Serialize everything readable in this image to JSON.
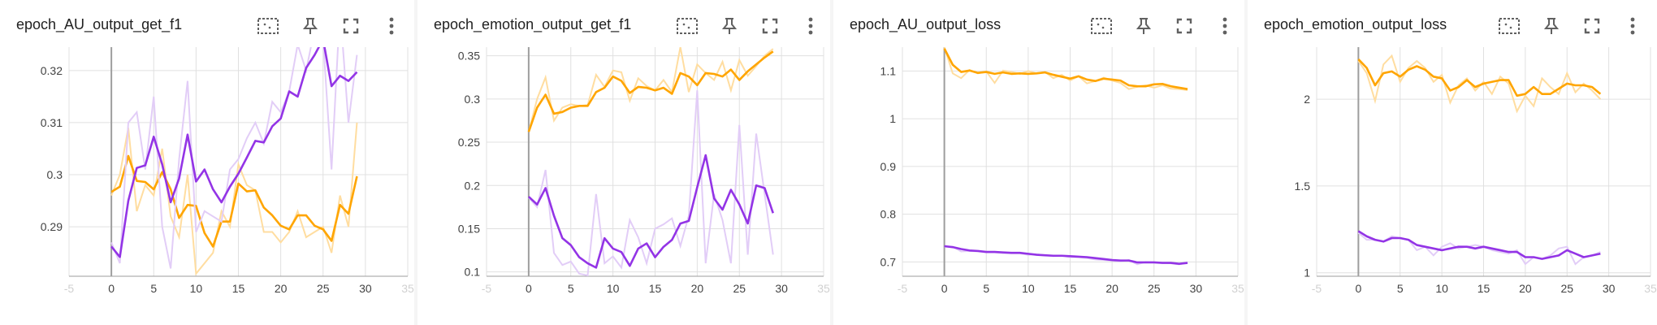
{
  "colors": {
    "orange": "#ffa500",
    "orange_raw": "#ffdda0",
    "purple": "#9334e6",
    "purple_raw": "#e2cdf7",
    "grid": "#e0e0e0",
    "axis": "#9e9e9e"
  },
  "icons": [
    "fit-domain-icon",
    "pin-icon",
    "fullscreen-icon",
    "more-vert-icon"
  ],
  "chart_data": [
    {
      "type": "line",
      "title": "epoch_AU_output_get_f1",
      "xlim": [
        -5,
        35
      ],
      "ylim": [
        0.2805,
        0.3245
      ],
      "xticks": [
        {
          "v": -5,
          "l": "-5"
        },
        {
          "v": 0,
          "l": "0"
        },
        {
          "v": 5,
          "l": "5"
        },
        {
          "v": 10,
          "l": "10"
        },
        {
          "v": 15,
          "l": "15"
        },
        {
          "v": 20,
          "l": "20"
        },
        {
          "v": 25,
          "l": "25"
        },
        {
          "v": 30,
          "l": "30"
        },
        {
          "v": 35,
          "l": "35"
        }
      ],
      "yticks": [
        {
          "v": 0.29,
          "l": "0.29"
        },
        {
          "v": 0.3,
          "l": "0.3"
        },
        {
          "v": 0.31,
          "l": "0.31"
        },
        {
          "v": 0.32,
          "l": "0.32"
        }
      ],
      "series": [
        {
          "color": "orange",
          "raw": [
            0.296,
            0.3,
            0.309,
            0.293,
            0.298,
            0.296,
            0.305,
            0.292,
            0.288,
            0.3,
            0.281,
            0.283,
            0.285,
            0.293,
            0.29,
            0.302,
            0.298,
            0.297,
            0.289,
            0.289,
            0.287,
            0.289,
            0.293,
            0.288,
            0.289,
            0.29,
            0.285,
            0.296,
            0.29,
            0.31
          ],
          "smoothed": [
            0.2967,
            0.2977,
            0.3036,
            0.2988,
            0.2986,
            0.2972,
            0.3005,
            0.2972,
            0.2917,
            0.2942,
            0.294,
            0.2888,
            0.2862,
            0.291,
            0.291,
            0.2983,
            0.2968,
            0.297,
            0.2937,
            0.2922,
            0.2902,
            0.2895,
            0.2922,
            0.2922,
            0.2902,
            0.2895,
            0.2873,
            0.2942,
            0.2925,
            0.2997
          ]
        },
        {
          "color": "purple",
          "raw": [
            0.287,
            0.283,
            0.31,
            0.312,
            0.301,
            0.315,
            0.29,
            0.282,
            0.303,
            0.318,
            0.289,
            0.293,
            0.292,
            0.291,
            0.301,
            0.303,
            0.307,
            0.31,
            0.306,
            0.314,
            0.312,
            0.316,
            0.325,
            0.32,
            0.328,
            0.326,
            0.301,
            0.332,
            0.31,
            0.323
          ],
          "smoothed": [
            0.2862,
            0.2842,
            0.295,
            0.3013,
            0.3018,
            0.3073,
            0.302,
            0.2947,
            0.2993,
            0.3077,
            0.2987,
            0.301,
            0.2972,
            0.2947,
            0.2977,
            0.3002,
            0.3033,
            0.3065,
            0.3062,
            0.3093,
            0.3108,
            0.316,
            0.315,
            0.3205,
            0.323,
            0.326,
            0.317,
            0.319,
            0.318,
            0.3197
          ]
        }
      ]
    },
    {
      "type": "line",
      "title": "epoch_emotion_output_get_f1",
      "xlim": [
        -5,
        35
      ],
      "ylim": [
        0.095,
        0.36
      ],
      "xticks": [
        {
          "v": -5,
          "l": "-5"
        },
        {
          "v": 0,
          "l": "0"
        },
        {
          "v": 5,
          "l": "5"
        },
        {
          "v": 10,
          "l": "10"
        },
        {
          "v": 15,
          "l": "15"
        },
        {
          "v": 20,
          "l": "20"
        },
        {
          "v": 25,
          "l": "25"
        },
        {
          "v": 30,
          "l": "30"
        },
        {
          "v": 35,
          "l": "35"
        }
      ],
      "yticks": [
        {
          "v": 0.1,
          "l": "0.1"
        },
        {
          "v": 0.15,
          "l": "0.15"
        },
        {
          "v": 0.2,
          "l": "0.2"
        },
        {
          "v": 0.25,
          "l": "0.25"
        },
        {
          "v": 0.3,
          "l": "0.3"
        },
        {
          "v": 0.35,
          "l": "0.35"
        }
      ],
      "series": [
        {
          "color": "orange",
          "raw": [
            0.262,
            0.3,
            0.325,
            0.275,
            0.29,
            0.294,
            0.292,
            0.293,
            0.328,
            0.314,
            0.333,
            0.331,
            0.298,
            0.324,
            0.315,
            0.31,
            0.322,
            0.308,
            0.36,
            0.308,
            0.34,
            0.33,
            0.322,
            0.343,
            0.31,
            0.345,
            0.327,
            0.338,
            0.35,
            0.358
          ],
          "smoothed": [
            0.262,
            0.29,
            0.305,
            0.283,
            0.285,
            0.29,
            0.292,
            0.292,
            0.308,
            0.313,
            0.326,
            0.321,
            0.307,
            0.314,
            0.313,
            0.31,
            0.313,
            0.306,
            0.33,
            0.326,
            0.316,
            0.33,
            0.329,
            0.326,
            0.334,
            0.322,
            0.332,
            0.34,
            0.348,
            0.355
          ]
        },
        {
          "color": "purple",
          "raw": [
            0.186,
            0.175,
            0.218,
            0.122,
            0.108,
            0.112,
            0.098,
            0.096,
            0.19,
            0.11,
            0.118,
            0.105,
            0.16,
            0.14,
            0.11,
            0.15,
            0.155,
            0.162,
            0.13,
            0.165,
            0.31,
            0.11,
            0.19,
            0.16,
            0.11,
            0.27,
            0.12,
            0.26,
            0.19,
            0.12
          ],
          "smoothed": [
            0.187,
            0.178,
            0.197,
            0.165,
            0.139,
            0.131,
            0.117,
            0.11,
            0.105,
            0.139,
            0.127,
            0.123,
            0.107,
            0.127,
            0.133,
            0.117,
            0.129,
            0.137,
            0.156,
            0.159,
            0.198,
            0.235,
            0.185,
            0.172,
            0.195,
            0.178,
            0.156,
            0.2,
            0.197,
            0.168
          ]
        }
      ]
    },
    {
      "type": "line",
      "title": "epoch_AU_output_loss",
      "xlim": [
        -5,
        35
      ],
      "ylim": [
        0.67,
        1.15
      ],
      "xticks": [
        {
          "v": -5,
          "l": "-5"
        },
        {
          "v": 0,
          "l": "0"
        },
        {
          "v": 5,
          "l": "5"
        },
        {
          "v": 10,
          "l": "10"
        },
        {
          "v": 15,
          "l": "15"
        },
        {
          "v": 20,
          "l": "20"
        },
        {
          "v": 25,
          "l": "25"
        },
        {
          "v": 30,
          "l": "30"
        },
        {
          "v": 35,
          "l": "35"
        }
      ],
      "yticks": [
        {
          "v": 0.7,
          "l": "0.7"
        },
        {
          "v": 0.8,
          "l": "0.8"
        },
        {
          "v": 0.9,
          "l": "0.9"
        },
        {
          "v": 1.0,
          "l": "1"
        },
        {
          "v": 1.1,
          "l": "1.1"
        }
      ],
      "series": [
        {
          "color": "orange",
          "raw": [
            1.15,
            1.095,
            1.085,
            1.102,
            1.095,
            1.099,
            1.075,
            1.101,
            1.098,
            1.094,
            1.1,
            1.095,
            1.098,
            1.085,
            1.092,
            1.08,
            1.089,
            1.074,
            1.079,
            1.086,
            1.08,
            1.075,
            1.062,
            1.067,
            1.07,
            1.065,
            1.07,
            1.063,
            1.062,
            1.06
          ],
          "smoothed": [
            1.147,
            1.113,
            1.098,
            1.101,
            1.096,
            1.098,
            1.094,
            1.097,
            1.094,
            1.095,
            1.094,
            1.095,
            1.097,
            1.092,
            1.088,
            1.084,
            1.089,
            1.082,
            1.079,
            1.084,
            1.082,
            1.08,
            1.07,
            1.068,
            1.068,
            1.072,
            1.073,
            1.068,
            1.065,
            1.062
          ]
        },
        {
          "color": "purple",
          "raw": [
            0.732,
            0.732,
            0.722,
            0.723,
            0.722,
            0.72,
            0.72,
            0.718,
            0.718,
            0.718,
            0.715,
            0.716,
            0.714,
            0.712,
            0.713,
            0.71,
            0.71,
            0.708,
            0.705,
            0.704,
            0.703,
            0.701,
            0.704,
            0.695,
            0.7,
            0.699,
            0.699,
            0.697,
            0.695,
            0.699
          ],
          "smoothed": [
            0.733,
            0.731,
            0.727,
            0.724,
            0.723,
            0.721,
            0.721,
            0.72,
            0.719,
            0.719,
            0.717,
            0.715,
            0.714,
            0.713,
            0.713,
            0.712,
            0.711,
            0.71,
            0.708,
            0.706,
            0.704,
            0.703,
            0.703,
            0.699,
            0.699,
            0.699,
            0.698,
            0.698,
            0.696,
            0.698
          ]
        }
      ]
    },
    {
      "type": "line",
      "title": "epoch_emotion_output_loss",
      "xlim": [
        -5,
        35
      ],
      "ylim": [
        0.98,
        2.3
      ],
      "xticks": [
        {
          "v": -5,
          "l": "-5"
        },
        {
          "v": 0,
          "l": "0"
        },
        {
          "v": 5,
          "l": "5"
        },
        {
          "v": 10,
          "l": "10"
        },
        {
          "v": 15,
          "l": "15"
        },
        {
          "v": 20,
          "l": "20"
        },
        {
          "v": 25,
          "l": "25"
        },
        {
          "v": 30,
          "l": "30"
        },
        {
          "v": 35,
          "l": "35"
        }
      ],
      "yticks": [
        {
          "v": 1.0,
          "l": "1"
        },
        {
          "v": 1.5,
          "l": "1.5"
        },
        {
          "v": 2.0,
          "l": "2"
        }
      ],
      "series": [
        {
          "color": "orange",
          "raw": [
            2.22,
            2.15,
            1.99,
            2.2,
            2.25,
            2.1,
            2.18,
            2.22,
            2.18,
            2.1,
            2.14,
            1.98,
            2.08,
            2.12,
            2.05,
            2.1,
            2.03,
            2.13,
            2.09,
            1.93,
            2.02,
            1.96,
            2.12,
            2.07,
            2.03,
            2.15,
            2.04,
            2.09,
            2.05,
            2.0
          ],
          "smoothed": [
            2.23,
            2.18,
            2.08,
            2.15,
            2.16,
            2.13,
            2.17,
            2.19,
            2.17,
            2.13,
            2.12,
            2.05,
            2.07,
            2.11,
            2.07,
            2.09,
            2.1,
            2.11,
            2.11,
            2.02,
            2.03,
            2.07,
            2.03,
            2.03,
            2.06,
            2.09,
            2.08,
            2.08,
            2.07,
            2.03
          ]
        },
        {
          "color": "purple",
          "raw": [
            1.23,
            1.19,
            1.19,
            1.18,
            1.21,
            1.2,
            1.19,
            1.13,
            1.15,
            1.1,
            1.15,
            1.17,
            1.14,
            1.15,
            1.16,
            1.15,
            1.13,
            1.12,
            1.11,
            1.13,
            1.05,
            1.09,
            1.08,
            1.1,
            1.14,
            1.15,
            1.05,
            1.09,
            1.1,
            1.12
          ],
          "smoothed": [
            1.24,
            1.21,
            1.19,
            1.18,
            1.2,
            1.2,
            1.19,
            1.16,
            1.15,
            1.14,
            1.13,
            1.14,
            1.15,
            1.15,
            1.14,
            1.15,
            1.14,
            1.13,
            1.12,
            1.12,
            1.09,
            1.09,
            1.08,
            1.09,
            1.1,
            1.13,
            1.11,
            1.09,
            1.1,
            1.11
          ]
        }
      ]
    }
  ]
}
